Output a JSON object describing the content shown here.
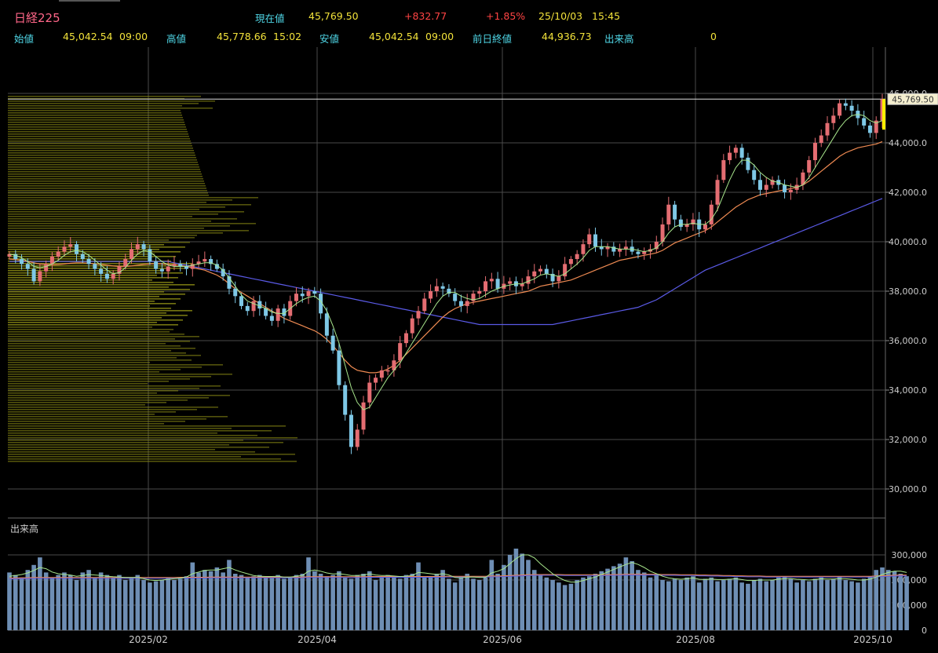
{
  "header": {
    "title": "日経225",
    "current_label": "現在値",
    "current_value": "45,769.50",
    "change": "+832.77",
    "change_pct": "+1.85%",
    "date": "25/10/03",
    "time": "15:45",
    "open_label": "始値",
    "open_value": "45,042.54",
    "open_time": "09:00",
    "high_label": "高値",
    "high_value": "45,778.66",
    "high_time": "15:02",
    "low_label": "安値",
    "low_value": "45,042.54",
    "low_time": "09:00",
    "prev_close_label": "前日終値",
    "prev_close_value": "44,936.73",
    "volume_label": "出来高",
    "volume_value": "0"
  },
  "colors": {
    "up": "#e46d72",
    "down": "#7ec8e6",
    "volume_bar": "#6e8eb4",
    "profile": "#8a8a14",
    "ma_short": "#a8e68c",
    "ma_mid": "#ee8a52",
    "ma_long": "#5a5ae6",
    "grid": "#4a4a4a",
    "title": "#ff6688",
    "label": "#4fd6e6",
    "value": "#f2e23a",
    "change": "#ff4444"
  },
  "chart_data": [
    {
      "type": "candlestick",
      "title": "",
      "x_tick_labels": [
        "2025/02",
        "2025/04",
        "2025/06",
        "2025/08",
        "2025/10"
      ],
      "y_tick_labels": [
        "30,000.0",
        "32,000.0",
        "34,000.0",
        "36,000.0",
        "38,000.0",
        "40,000.0",
        "42,000.0",
        "44,000.0",
        "46,000.0"
      ],
      "ylim": [
        29000,
        46500
      ],
      "last_price_label": "45,769.50",
      "last_price": 45769.5,
      "close_series": [
        39500,
        39300,
        39100,
        38900,
        38400,
        38800,
        39100,
        39400,
        39600,
        39800,
        39900,
        39500,
        39300,
        39100,
        38900,
        38700,
        38500,
        38700,
        39000,
        39300,
        39700,
        39900,
        39700,
        39200,
        38900,
        38800,
        39000,
        39100,
        39000,
        38900,
        39100,
        39200,
        39300,
        39100,
        38900,
        38600,
        38100,
        37800,
        37400,
        37200,
        37600,
        37300,
        37000,
        36800,
        37300,
        37000,
        37600,
        37900,
        37800,
        38000,
        37900,
        37100,
        36200,
        35600,
        34200,
        33000,
        31700,
        32400,
        33500,
        34300,
        34500,
        34800,
        34800,
        35200,
        35900,
        36300,
        36900,
        37200,
        37700,
        38000,
        38200,
        38100,
        37900,
        37600,
        37400,
        37600,
        37900,
        38000,
        38400,
        38500,
        38100,
        38300,
        38400,
        38200,
        38300,
        38600,
        38800,
        38900,
        38700,
        38400,
        38600,
        39100,
        39300,
        39500,
        39900,
        40300,
        39800,
        39700,
        39800,
        39600,
        39700,
        39800,
        39600,
        39500,
        39600,
        39700,
        40000,
        40700,
        41500,
        40900,
        40600,
        40700,
        40900,
        40500,
        40700,
        41500,
        42500,
        43300,
        43600,
        43800,
        43400,
        42900,
        42500,
        42100,
        42300,
        42500,
        42300,
        42000,
        42100,
        42300,
        42800,
        43300,
        44000,
        44300,
        44800,
        45100,
        45600,
        45500,
        45300,
        45000,
        44700,
        44400,
        44900,
        45769.5
      ],
      "ma_short_series": [
        39500,
        39450,
        39350,
        39200,
        39000,
        38950,
        39000,
        39100,
        39250,
        39450,
        39600,
        39650,
        39600,
        39450,
        39250,
        39050,
        38850,
        38700,
        38750,
        38950,
        39250,
        39500,
        39650,
        39600,
        39400,
        39200,
        39050,
        39000,
        39000,
        39000,
        39050,
        39100,
        39150,
        39150,
        39050,
        38850,
        38550,
        38200,
        37850,
        37600,
        37500,
        37400,
        37300,
        37150,
        37100,
        37100,
        37300,
        37500,
        37650,
        37750,
        37800,
        37600,
        37200,
        36600,
        35900,
        35000,
        34100,
        33500,
        33200,
        33300,
        33700,
        34100,
        34500,
        34800,
        35100,
        35500,
        35900,
        36300,
        36700,
        37100,
        37500,
        37800,
        37950,
        37950,
        37800,
        37700,
        37650,
        37700,
        37850,
        38000,
        38100,
        38200,
        38250,
        38300,
        38300,
        38400,
        38500,
        38650,
        38700,
        38650,
        38600,
        38700,
        38900,
        39100,
        39350,
        39650,
        39800,
        39800,
        39800,
        39750,
        39700,
        39700,
        39700,
        39650,
        39600,
        39650,
        39750,
        40000,
        40350,
        40600,
        40700,
        40700,
        40750,
        40700,
        40700,
        40900,
        41300,
        41900,
        42500,
        43000,
        43300,
        43300,
        43100,
        42800,
        42600,
        42450,
        42400,
        42300,
        42250,
        42200,
        42300,
        42600,
        43000,
        43400,
        43800,
        44200,
        44600,
        44900,
        45100,
        45150,
        45100,
        44900,
        44800,
        44900
      ],
      "ma_mid_series": [
        39300,
        39280,
        39250,
        39200,
        39150,
        39100,
        39080,
        39070,
        39080,
        39100,
        39130,
        39150,
        39150,
        39130,
        39100,
        39080,
        39050,
        39020,
        39000,
        39000,
        39020,
        39050,
        39080,
        39100,
        39110,
        39100,
        39080,
        39060,
        39040,
        39000,
        38950,
        38900,
        38850,
        38750,
        38650,
        38500,
        38300,
        38100,
        37950,
        37800,
        37650,
        37500,
        37350,
        37200,
        37050,
        36900,
        36800,
        36700,
        36600,
        36500,
        36400,
        36250,
        36050,
        35800,
        35500,
        35200,
        34950,
        34800,
        34750,
        34700,
        34700,
        34750,
        34850,
        35000,
        35200,
        35450,
        35700,
        35950,
        36200,
        36450,
        36700,
        36950,
        37150,
        37300,
        37400,
        37500,
        37550,
        37600,
        37650,
        37700,
        37750,
        37800,
        37850,
        37900,
        37950,
        38000,
        38100,
        38200,
        38250,
        38300,
        38350,
        38400,
        38450,
        38550,
        38650,
        38750,
        38850,
        38950,
        39050,
        39150,
        39250,
        39300,
        39350,
        39400,
        39450,
        39500,
        39550,
        39650,
        39800,
        39950,
        40050,
        40150,
        40250,
        40350,
        40450,
        40600,
        40800,
        41000,
        41200,
        41400,
        41550,
        41700,
        41800,
        41900,
        41950,
        42000,
        42050,
        42100,
        42150,
        42200,
        42300,
        42450,
        42650,
        42850,
        43050,
        43250,
        43450,
        43600,
        43700,
        43800,
        43850,
        43900,
        43950,
        44050
      ],
      "ma_long_series": [
        39200,
        39200,
        39200,
        39200,
        39200,
        39200,
        39200,
        39200,
        39200,
        39200,
        39200,
        39200,
        39200,
        39200,
        39200,
        39200,
        39200,
        39200,
        39200,
        39200,
        39200,
        39200,
        39200,
        39200,
        39200,
        39200,
        39200,
        39150,
        39100,
        39050,
        39000,
        38950,
        38900,
        38850,
        38800,
        38750,
        38700,
        38650,
        38600,
        38550,
        38500,
        38450,
        38400,
        38350,
        38300,
        38250,
        38200,
        38150,
        38100,
        38050,
        38000,
        37950,
        37900,
        37850,
        37800,
        37750,
        37700,
        37650,
        37600,
        37550,
        37500,
        37450,
        37400,
        37350,
        37300,
        37250,
        37200,
        37150,
        37100,
        37050,
        37000,
        36950,
        36900,
        36850,
        36800,
        36750,
        36700,
        36650,
        36650,
        36650,
        36650,
        36650,
        36650,
        36650,
        36650,
        36650,
        36650,
        36650,
        36650,
        36650,
        36700,
        36750,
        36800,
        36850,
        36900,
        36950,
        37000,
        37050,
        37100,
        37150,
        37200,
        37250,
        37300,
        37350,
        37450,
        37550,
        37650,
        37800,
        37950,
        38100,
        38250,
        38400,
        38550,
        38700,
        38850,
        38950,
        39050,
        39150,
        39250,
        39350,
        39450,
        39550,
        39650,
        39750,
        39850,
        39950,
        40050,
        40150,
        40250,
        40350,
        40450,
        40550,
        40650,
        40750,
        40850,
        40950,
        41050,
        41150,
        41250,
        41350,
        41450,
        41550,
        41650,
        41750
      ],
      "volume_profile_note": "horizontal price-volume bars"
    },
    {
      "type": "bar",
      "title": "出来高",
      "y_tick_labels": [
        "0",
        "100,000",
        "200,000",
        "300,000"
      ],
      "ylim": [
        0,
        330000
      ],
      "values": [
        230000,
        220000,
        210000,
        240000,
        260000,
        290000,
        230000,
        210000,
        220000,
        230000,
        220000,
        200000,
        230000,
        240000,
        210000,
        230000,
        220000,
        210000,
        220000,
        200000,
        210000,
        220000,
        200000,
        190000,
        195000,
        200000,
        210000,
        200000,
        205000,
        215000,
        270000,
        230000,
        240000,
        235000,
        250000,
        230000,
        280000,
        225000,
        220000,
        210000,
        215000,
        220000,
        210000,
        215000,
        220000,
        205000,
        210000,
        220000,
        225000,
        290000,
        235000,
        225000,
        215000,
        220000,
        235000,
        210000,
        205000,
        220000,
        225000,
        235000,
        200000,
        215000,
        220000,
        210000,
        205000,
        220000,
        225000,
        270000,
        215000,
        210000,
        225000,
        240000,
        205000,
        190000,
        215000,
        225000,
        205000,
        200000,
        210000,
        280000,
        225000,
        260000,
        300000,
        325000,
        305000,
        280000,
        240000,
        220000,
        210000,
        200000,
        190000,
        180000,
        185000,
        200000,
        210000,
        215000,
        225000,
        235000,
        245000,
        255000,
        265000,
        290000,
        275000,
        240000,
        230000,
        210000,
        220000,
        200000,
        195000,
        205000,
        200000,
        210000,
        215000,
        190000,
        205000,
        210000,
        195000,
        200000,
        205000,
        210000,
        190000,
        185000,
        200000,
        205000,
        195000,
        200000,
        210000,
        215000,
        205000,
        190000,
        200000,
        195000,
        205000,
        210000,
        200000,
        205000,
        215000,
        200000,
        195000,
        190000,
        205000,
        215000,
        240000,
        250000,
        240000,
        235000,
        225000,
        215000
      ],
      "ma_short": [
        215000,
        218000,
        222000,
        228000,
        238000,
        250000,
        245000,
        232000,
        225000,
        222000,
        220000,
        215000,
        218000,
        222000,
        220000,
        218000,
        215000,
        213000,
        212000,
        210000,
        210000,
        210000,
        205000,
        200000,
        198000,
        200000,
        203000,
        205000,
        207000,
        212000,
        225000,
        232000,
        238000,
        240000,
        240000,
        245000,
        250000,
        240000,
        232000,
        225000,
        218000,
        215000,
        214000,
        214000,
        215000,
        212000,
        212000,
        215000,
        218000,
        235000,
        240000,
        235000,
        228000,
        224000,
        225000,
        222000,
        218000,
        218000,
        220000,
        224000,
        220000,
        218000,
        218000,
        216000,
        214000,
        215000,
        218000,
        230000,
        228000,
        225000,
        222000,
        225000,
        220000,
        210000,
        208000,
        212000,
        212000,
        210000,
        210000,
        228000,
        235000,
        245000,
        265000,
        285000,
        300000,
        300000,
        288000,
        265000,
        245000,
        225000,
        210000,
        198000,
        192000,
        192000,
        198000,
        205000,
        212000,
        222000,
        232000,
        242000,
        252000,
        262000,
        270000,
        262000,
        250000,
        235000,
        225000,
        215000,
        208000,
        205000,
        203000,
        205000,
        208000,
        203000,
        202000,
        204000,
        202000,
        202000,
        203000,
        205000,
        202000,
        198000,
        198000,
        200000,
        200000,
        200000,
        203000,
        206000,
        206000,
        203000,
        202000,
        200000,
        202000,
        205000,
        204000,
        204000,
        206000,
        205000,
        203000,
        200000,
        200000,
        203000,
        212000,
        222000,
        230000,
        235000,
        235000,
        230000
      ],
      "ma_long": [
        205000,
        205000,
        206000,
        206000,
        207000,
        207000,
        207000,
        207000,
        207000,
        207000,
        207000,
        207000,
        207000,
        207000,
        207000,
        207000,
        207000,
        207000,
        207000,
        207000,
        207000,
        207000,
        207000,
        207000,
        207000,
        207000,
        207000,
        207000,
        208000,
        208000,
        208000,
        208000,
        208000,
        209000,
        209000,
        209000,
        209000,
        209000,
        209000,
        209000,
        209000,
        209000,
        209000,
        209000,
        209000,
        209000,
        209000,
        209000,
        209000,
        210000,
        210000,
        210000,
        210000,
        210000,
        210000,
        210000,
        210000,
        210000,
        210000,
        211000,
        211000,
        211000,
        211000,
        211000,
        211000,
        211000,
        211000,
        211000,
        211000,
        211000,
        211000,
        212000,
        212000,
        212000,
        212000,
        212000,
        212000,
        212000,
        212000,
        213000,
        213000,
        214000,
        215000,
        216000,
        217000,
        218000,
        219000,
        219000,
        219000,
        219000,
        219000,
        218000,
        218000,
        218000,
        218000,
        218000,
        218000,
        218000,
        218000,
        219000,
        219000,
        220000,
        220000,
        220000,
        220000,
        220000,
        220000,
        219000,
        219000,
        219000,
        218000,
        218000,
        218000,
        217000,
        217000,
        216000,
        216000,
        215000,
        215000,
        214000,
        214000,
        213000,
        213000,
        213000,
        212000,
        212000,
        212000,
        212000,
        212000,
        212000,
        212000,
        212000,
        212000,
        212000,
        212000,
        212000,
        212000,
        212000,
        212000,
        212000,
        212000,
        212000,
        213000,
        214000,
        215000,
        216000,
        217000,
        217000
      ]
    }
  ]
}
